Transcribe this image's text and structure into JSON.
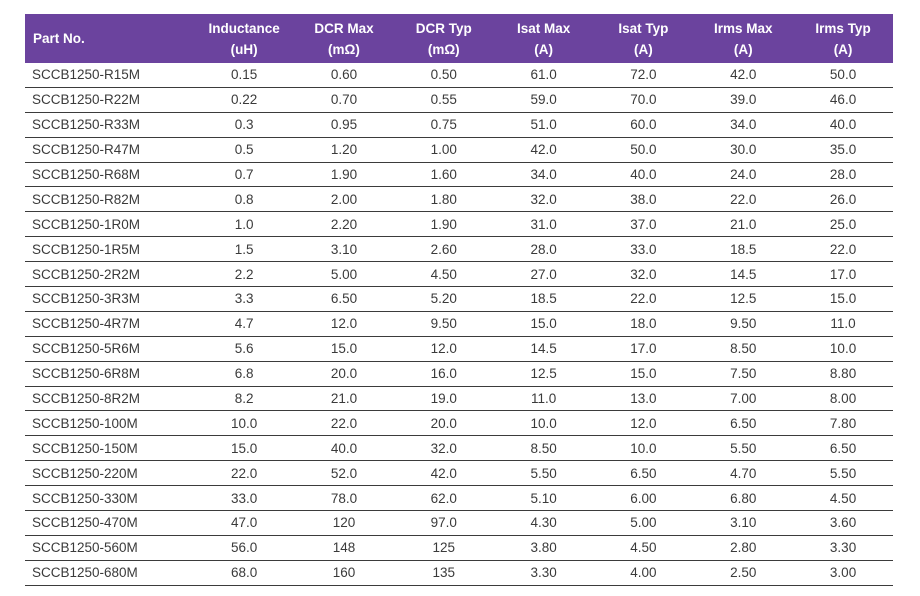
{
  "colors": {
    "header_background": "#6B439E",
    "header_text": "#FFFFFF",
    "body_text": "#3A3A3A",
    "row_divider": "#3B3B3B",
    "page_background": "#FFFFFF"
  },
  "table": {
    "columns": [
      {
        "id": "part-no",
        "label": "Part No.",
        "unit": ""
      },
      {
        "id": "inductance",
        "label": "Inductance",
        "unit": "(uH)"
      },
      {
        "id": "dcr-max",
        "label": "DCR Max",
        "unit": "(mΩ)"
      },
      {
        "id": "dcr-typ",
        "label": "DCR Typ",
        "unit": "(mΩ)"
      },
      {
        "id": "isat-max",
        "label": "Isat Max",
        "unit": "(A)"
      },
      {
        "id": "isat-typ",
        "label": "Isat Typ",
        "unit": "(A)"
      },
      {
        "id": "irms-max",
        "label": "Irms Max",
        "unit": "(A)"
      },
      {
        "id": "irms-typ",
        "label": "Irms Typ",
        "unit": "(A)"
      }
    ],
    "rows": [
      [
        "SCCB1250-R15M",
        "0.15",
        "0.60",
        "0.50",
        "61.0",
        "72.0",
        "42.0",
        "50.0"
      ],
      [
        "SCCB1250-R22M",
        "0.22",
        "0.70",
        "0.55",
        "59.0",
        "70.0",
        "39.0",
        "46.0"
      ],
      [
        "SCCB1250-R33M",
        "0.3",
        "0.95",
        "0.75",
        "51.0",
        "60.0",
        "34.0",
        "40.0"
      ],
      [
        "SCCB1250-R47M",
        "0.5",
        "1.20",
        "1.00",
        "42.0",
        "50.0",
        "30.0",
        "35.0"
      ],
      [
        "SCCB1250-R68M",
        "0.7",
        "1.90",
        "1.60",
        "34.0",
        "40.0",
        "24.0",
        "28.0"
      ],
      [
        "SCCB1250-R82M",
        "0.8",
        "2.00",
        "1.80",
        "32.0",
        "38.0",
        "22.0",
        "26.0"
      ],
      [
        "SCCB1250-1R0M",
        "1.0",
        "2.20",
        "1.90",
        "31.0",
        "37.0",
        "21.0",
        "25.0"
      ],
      [
        "SCCB1250-1R5M",
        "1.5",
        "3.10",
        "2.60",
        "28.0",
        "33.0",
        "18.5",
        "22.0"
      ],
      [
        "SCCB1250-2R2M",
        "2.2",
        "5.00",
        "4.50",
        "27.0",
        "32.0",
        "14.5",
        "17.0"
      ],
      [
        "SCCB1250-3R3M",
        "3.3",
        "6.50",
        "5.20",
        "18.5",
        "22.0",
        "12.5",
        "15.0"
      ],
      [
        "SCCB1250-4R7M",
        "4.7",
        "12.0",
        "9.50",
        "15.0",
        "18.0",
        "9.50",
        "11.0"
      ],
      [
        "SCCB1250-5R6M",
        "5.6",
        "15.0",
        "12.0",
        "14.5",
        "17.0",
        "8.50",
        "10.0"
      ],
      [
        "SCCB1250-6R8M",
        "6.8",
        "20.0",
        "16.0",
        "12.5",
        "15.0",
        "7.50",
        "8.80"
      ],
      [
        "SCCB1250-8R2M",
        "8.2",
        "21.0",
        "19.0",
        "11.0",
        "13.0",
        "7.00",
        "8.00"
      ],
      [
        "SCCB1250-100M",
        "10.0",
        "22.0",
        "20.0",
        "10.0",
        "12.0",
        "6.50",
        "7.80"
      ],
      [
        "SCCB1250-150M",
        "15.0",
        "40.0",
        "32.0",
        "8.50",
        "10.0",
        "5.50",
        "6.50"
      ],
      [
        "SCCB1250-220M",
        "22.0",
        "52.0",
        "42.0",
        "5.50",
        "6.50",
        "4.70",
        "5.50"
      ],
      [
        "SCCB1250-330M",
        "33.0",
        "78.0",
        "62.0",
        "5.10",
        "6.00",
        "6.80",
        "4.50"
      ],
      [
        "SCCB1250-470M",
        "47.0",
        "120",
        "97.0",
        "4.30",
        "5.00",
        "3.10",
        "3.60"
      ],
      [
        "SCCB1250-560M",
        "56.0",
        "148",
        "125",
        "3.80",
        "4.50",
        "2.80",
        "3.30"
      ],
      [
        "SCCB1250-680M",
        "68.0",
        "160",
        "135",
        "3.30",
        "4.00",
        "2.50",
        "3.00"
      ]
    ]
  }
}
